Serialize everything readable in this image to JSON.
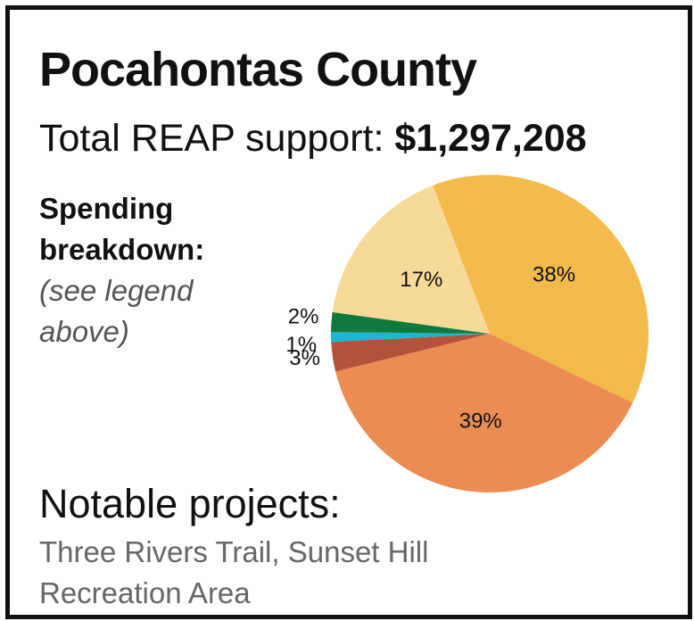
{
  "title": "Pocahontas County",
  "total_label": "Total REAP support:",
  "total_amount": "$1,297,208",
  "breakdown_heading_line1": "Spending",
  "breakdown_heading_line2": "breakdown:",
  "breakdown_note_line1": "(see legend",
  "breakdown_note_line2": "above)",
  "notable_heading": "Notable projects:",
  "notable_projects": "Three Rivers Trail, Sunset Hill Recreation Area",
  "chart_data": {
    "type": "pie",
    "slices": [
      {
        "label": "38%",
        "value": 38,
        "color": "#f2ba4a"
      },
      {
        "label": "39%",
        "value": 39,
        "color": "#eb8c52"
      },
      {
        "label": "3%",
        "value": 3,
        "color": "#b3523a"
      },
      {
        "label": "1%",
        "value": 1,
        "color": "#1ab6d4"
      },
      {
        "label": "2%",
        "value": 2,
        "color": "#0f7a3c"
      },
      {
        "label": "17%",
        "value": 17,
        "color": "#f7da9a"
      }
    ]
  }
}
